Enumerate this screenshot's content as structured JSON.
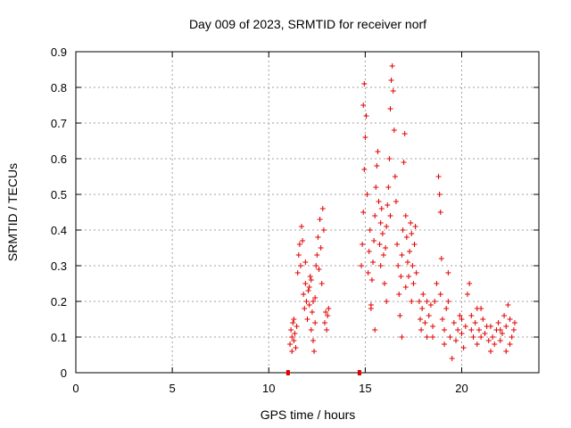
{
  "chart_data": {
    "type": "scatter",
    "title": "Day 009 of 2023, SRMTID for receiver norf",
    "xlabel": "GPS time / hours",
    "ylabel": "SRMTID / TECUs",
    "xlim": [
      0,
      24
    ],
    "ylim": [
      0,
      0.9
    ],
    "xticks": [
      0,
      5,
      10,
      15,
      20
    ],
    "yticks": [
      0,
      0.1,
      0.2,
      0.3,
      0.4,
      0.5,
      0.6,
      0.7,
      0.8,
      0.9
    ],
    "xtick_labels": [
      "0",
      "5",
      "10",
      "15",
      "20"
    ],
    "ytick_labels": [
      "0",
      "0.1",
      "0.2",
      "0.3",
      "0.4",
      "0.5",
      "0.6",
      "0.7",
      "0.8",
      "0.9"
    ],
    "grid": true,
    "marker": "+",
    "color": "#e00000",
    "series": [
      {
        "name": "SRMTID",
        "points": [
          [
            11.0,
            0.0
          ],
          [
            14.7,
            0.0
          ],
          [
            11.1,
            0.08
          ],
          [
            11.15,
            0.12
          ],
          [
            11.2,
            0.1
          ],
          [
            11.25,
            0.14
          ],
          [
            11.3,
            0.09
          ],
          [
            11.35,
            0.11
          ],
          [
            11.4,
            0.07
          ],
          [
            11.45,
            0.13
          ],
          [
            11.2,
            0.06
          ],
          [
            11.3,
            0.15
          ],
          [
            11.5,
            0.28
          ],
          [
            11.55,
            0.33
          ],
          [
            11.6,
            0.36
          ],
          [
            11.65,
            0.3
          ],
          [
            11.7,
            0.41
          ],
          [
            11.75,
            0.37
          ],
          [
            11.8,
            0.22
          ],
          [
            11.85,
            0.18
          ],
          [
            11.9,
            0.25
          ],
          [
            11.95,
            0.2
          ],
          [
            12.0,
            0.15
          ],
          [
            12.05,
            0.23
          ],
          [
            12.1,
            0.19
          ],
          [
            12.15,
            0.27
          ],
          [
            12.2,
            0.12
          ],
          [
            12.25,
            0.17
          ],
          [
            12.3,
            0.09
          ],
          [
            12.35,
            0.06
          ],
          [
            12.4,
            0.21
          ],
          [
            12.45,
            0.3
          ],
          [
            12.5,
            0.33
          ],
          [
            12.55,
            0.38
          ],
          [
            12.6,
            0.29
          ],
          [
            12.65,
            0.43
          ],
          [
            12.7,
            0.35
          ],
          [
            12.75,
            0.25
          ],
          [
            12.8,
            0.46
          ],
          [
            12.85,
            0.4
          ],
          [
            12.9,
            0.14
          ],
          [
            12.95,
            0.17
          ],
          [
            13.0,
            0.12
          ],
          [
            13.05,
            0.16
          ],
          [
            13.1,
            0.18
          ],
          [
            12.2,
            0.26
          ],
          [
            12.4,
            0.14
          ],
          [
            12.1,
            0.24
          ],
          [
            11.9,
            0.31
          ],
          [
            12.3,
            0.2
          ],
          [
            14.8,
            0.3
          ],
          [
            14.85,
            0.36
          ],
          [
            14.9,
            0.45
          ],
          [
            14.95,
            0.57
          ],
          [
            15.0,
            0.66
          ],
          [
            14.9,
            0.75
          ],
          [
            14.95,
            0.81
          ],
          [
            15.05,
            0.72
          ],
          [
            15.1,
            0.5
          ],
          [
            15.15,
            0.28
          ],
          [
            15.2,
            0.34
          ],
          [
            15.25,
            0.4
          ],
          [
            15.3,
            0.19
          ],
          [
            15.35,
            0.26
          ],
          [
            15.4,
            0.31
          ],
          [
            15.45,
            0.37
          ],
          [
            15.5,
            0.44
          ],
          [
            15.55,
            0.52
          ],
          [
            15.6,
            0.58
          ],
          [
            15.65,
            0.62
          ],
          [
            15.7,
            0.48
          ],
          [
            15.75,
            0.36
          ],
          [
            15.8,
            0.42
          ],
          [
            15.85,
            0.46
          ],
          [
            15.9,
            0.39
          ],
          [
            15.95,
            0.33
          ],
          [
            16.0,
            0.25
          ],
          [
            16.05,
            0.35
          ],
          [
            16.1,
            0.41
          ],
          [
            16.15,
            0.47
          ],
          [
            16.2,
            0.52
          ],
          [
            16.25,
            0.6
          ],
          [
            16.3,
            0.74
          ],
          [
            16.35,
            0.82
          ],
          [
            16.4,
            0.86
          ],
          [
            16.45,
            0.79
          ],
          [
            16.5,
            0.68
          ],
          [
            16.55,
            0.55
          ],
          [
            16.6,
            0.48
          ],
          [
            16.65,
            0.36
          ],
          [
            16.7,
            0.3
          ],
          [
            16.75,
            0.22
          ],
          [
            16.8,
            0.16
          ],
          [
            16.85,
            0.27
          ],
          [
            16.9,
            0.33
          ],
          [
            16.95,
            0.4
          ],
          [
            17.0,
            0.59
          ],
          [
            17.05,
            0.67
          ],
          [
            17.1,
            0.44
          ],
          [
            17.15,
            0.38
          ],
          [
            17.2,
            0.31
          ],
          [
            17.25,
            0.27
          ],
          [
            17.3,
            0.34
          ],
          [
            17.35,
            0.42
          ],
          [
            17.4,
            0.39
          ],
          [
            17.45,
            0.3
          ],
          [
            17.5,
            0.25
          ],
          [
            17.55,
            0.36
          ],
          [
            17.6,
            0.41
          ],
          [
            17.65,
            0.28
          ],
          [
            15.5,
            0.12
          ],
          [
            15.3,
            0.18
          ],
          [
            16.1,
            0.2
          ],
          [
            16.9,
            0.1
          ],
          [
            17.4,
            0.2
          ],
          [
            15.8,
            0.3
          ],
          [
            16.3,
            0.44
          ],
          [
            17.1,
            0.24
          ],
          [
            17.8,
            0.2
          ],
          [
            17.85,
            0.15
          ],
          [
            17.9,
            0.12
          ],
          [
            17.95,
            0.18
          ],
          [
            18.0,
            0.22
          ],
          [
            18.1,
            0.14
          ],
          [
            18.2,
            0.1
          ],
          [
            18.3,
            0.16
          ],
          [
            18.4,
            0.19
          ],
          [
            18.5,
            0.13
          ],
          [
            18.6,
            0.2
          ],
          [
            18.7,
            0.25
          ],
          [
            18.8,
            0.55
          ],
          [
            18.85,
            0.5
          ],
          [
            18.9,
            0.45
          ],
          [
            18.95,
            0.32
          ],
          [
            19.0,
            0.15
          ],
          [
            19.1,
            0.12
          ],
          [
            19.2,
            0.18
          ],
          [
            19.3,
            0.28
          ],
          [
            19.4,
            0.1
          ],
          [
            19.5,
            0.04
          ],
          [
            19.6,
            0.14
          ],
          [
            19.7,
            0.09
          ],
          [
            19.8,
            0.12
          ],
          [
            19.9,
            0.16
          ],
          [
            20.0,
            0.11
          ],
          [
            20.1,
            0.07
          ],
          [
            20.2,
            0.13
          ],
          [
            20.3,
            0.22
          ],
          [
            20.4,
            0.25
          ],
          [
            20.5,
            0.16
          ],
          [
            20.6,
            0.1
          ],
          [
            20.7,
            0.14
          ],
          [
            20.8,
            0.08
          ],
          [
            20.9,
            0.12
          ],
          [
            21.0,
            0.18
          ],
          [
            21.1,
            0.15
          ],
          [
            21.2,
            0.11
          ],
          [
            21.3,
            0.13
          ],
          [
            21.4,
            0.09
          ],
          [
            21.5,
            0.06
          ],
          [
            21.6,
            0.1
          ],
          [
            21.7,
            0.08
          ],
          [
            21.8,
            0.12
          ],
          [
            21.9,
            0.14
          ],
          [
            22.0,
            0.09
          ],
          [
            22.1,
            0.11
          ],
          [
            22.2,
            0.16
          ],
          [
            22.3,
            0.13
          ],
          [
            22.4,
            0.19
          ],
          [
            22.5,
            0.15
          ],
          [
            22.6,
            0.1
          ],
          [
            22.7,
            0.12
          ],
          [
            22.75,
            0.14
          ],
          [
            18.2,
            0.2
          ],
          [
            18.9,
            0.22
          ],
          [
            19.3,
            0.2
          ],
          [
            20.0,
            0.15
          ],
          [
            20.5,
            0.12
          ],
          [
            21.0,
            0.1
          ],
          [
            21.5,
            0.13
          ],
          [
            22.0,
            0.12
          ],
          [
            22.5,
            0.08
          ],
          [
            19.1,
            0.08
          ],
          [
            18.5,
            0.1
          ],
          [
            20.8,
            0.18
          ],
          [
            22.3,
            0.06
          ]
        ]
      }
    ]
  }
}
